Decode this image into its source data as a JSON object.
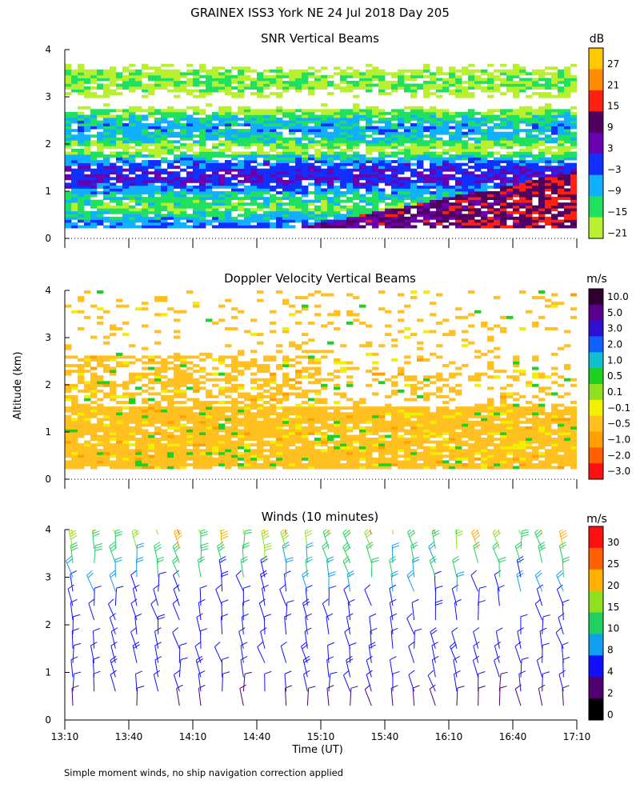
{
  "figure": {
    "title": "GRAINEX ISS3 York NE  24 Jul 2018 Day 205",
    "ylabel": "Altitude (km)",
    "xlabel": "Time (UT)",
    "footnote": "Simple moment winds, no ship navigation correction applied",
    "x_ticks": [
      "13:10",
      "13:40",
      "14:10",
      "14:40",
      "15:10",
      "15:40",
      "16:10",
      "16:40",
      "17:10"
    ],
    "y_ticks": [
      "0",
      "1",
      "2",
      "3",
      "4"
    ]
  },
  "chart_data": [
    {
      "type": "heatmap",
      "title": "SNR Vertical Beams",
      "units": "dB",
      "xlabel": "Time (UT)",
      "ylabel": "Altitude (km)",
      "x_range": [
        "13:10",
        "17:10"
      ],
      "ylim": [
        0,
        4
      ],
      "colorbar": {
        "labels": [
          "27",
          "21",
          "15",
          "9",
          "3",
          "−3",
          "−9",
          "−15",
          "−21"
        ],
        "colors": [
          "#ffc800",
          "#ff8c00",
          "#ff2010",
          "#500060",
          "#6a00b0",
          "#1030ff",
          "#10b0ff",
          "#20e060",
          "#b8f030"
        ]
      },
      "layers": [
        {
          "altitude_km": 0.2,
          "snr_dB": -6,
          "note": "strong echo layer rising after ~15:00"
        },
        {
          "altitude_km": 0.9,
          "snr_dB": -12
        },
        {
          "altitude_km": 1.3,
          "snr_dB": 0,
          "note": "persistent strong layer"
        },
        {
          "altitude_km": 2.3,
          "snr_dB": -9
        },
        {
          "altitude_km": 3.3,
          "snr_dB": -18
        }
      ]
    },
    {
      "type": "heatmap",
      "title": "Doppler Velocity Vertical Beams",
      "units": "m/s",
      "xlabel": "Time (UT)",
      "ylabel": "Altitude (km)",
      "x_range": [
        "13:10",
        "17:10"
      ],
      "ylim": [
        0,
        4
      ],
      "colorbar": {
        "labels": [
          "10.0",
          "5.0",
          "3.0",
          "2.0",
          "1.0",
          "0.5",
          "0.1",
          "−0.1",
          "−0.5",
          "−1.0",
          "−2.0",
          "−3.0"
        ],
        "colors": [
          "#300030",
          "#5a0090",
          "#3010d0",
          "#1060ff",
          "#10c0d0",
          "#20d020",
          "#90e020",
          "#f0f000",
          "#ffc020",
          "#ffa000",
          "#ff6000",
          "#ff1010"
        ]
      },
      "layers": [
        {
          "altitude_km": 0.8,
          "velocity_m_s": -0.5,
          "note": "dominant weak downward motion"
        },
        {
          "altitude_km": 2.2,
          "velocity_m_s": -0.3
        },
        {
          "altitude_km": 3.2,
          "velocity_m_s": -0.2
        }
      ]
    },
    {
      "type": "scatter",
      "subtype": "wind_barbs",
      "title": "Winds (10 minutes)",
      "units": "m/s",
      "xlabel": "Time (UT)",
      "ylabel": "Altitude (km)",
      "x_range": [
        "13:10",
        "17:10"
      ],
      "ylim": [
        0,
        4
      ],
      "colorbar": {
        "labels": [
          "30",
          "25",
          "20",
          "15",
          "10",
          "8",
          "4",
          "2",
          "0"
        ],
        "colors": [
          "#ff1010",
          "#ff6000",
          "#ffb000",
          "#90e020",
          "#20d060",
          "#10a0f0",
          "#1010ff",
          "#500070",
          "#000000"
        ]
      },
      "profiles": {
        "times": [
          "13:10",
          "13:20",
          "13:30",
          "13:40",
          "13:50",
          "14:00",
          "14:10",
          "14:20",
          "14:30",
          "14:40",
          "14:50",
          "15:00",
          "15:10",
          "15:20",
          "15:30",
          "15:40",
          "15:50",
          "16:00",
          "16:10",
          "16:20",
          "16:30",
          "16:40",
          "16:50",
          "17:00"
        ],
        "altitudes_km": [
          0.3,
          0.6,
          0.9,
          1.2,
          1.5,
          1.8,
          2.1,
          2.4,
          2.7,
          3.0,
          3.3,
          3.6,
          3.9
        ],
        "speed_by_altitude_m_s": [
          3,
          5,
          6,
          6,
          6,
          6,
          6,
          6,
          7,
          10,
          12,
          16,
          20
        ]
      }
    }
  ]
}
